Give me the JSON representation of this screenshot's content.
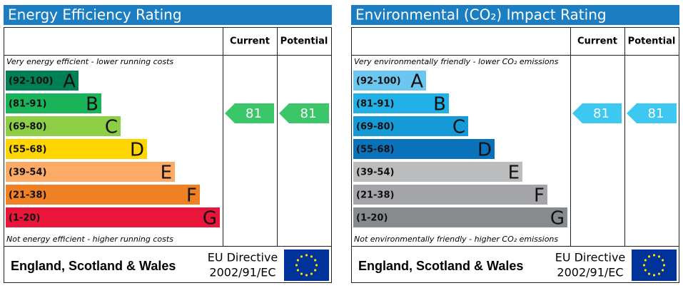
{
  "panels": [
    {
      "title": "Energy Efficiency Rating",
      "headers": [
        "Current",
        "Potential"
      ],
      "top_note": "Very energy efficient - lower running costs",
      "bottom_note": "Not energy efficient - higher running costs",
      "bands": [
        {
          "range": "(92-100)",
          "letter": "A",
          "color": "#008054"
        },
        {
          "range": "(81-91)",
          "letter": "B",
          "color": "#19b459"
        },
        {
          "range": "(69-80)",
          "letter": "C",
          "color": "#8dce46"
        },
        {
          "range": "(55-68)",
          "letter": "D",
          "color": "#ffd500"
        },
        {
          "range": "(39-54)",
          "letter": "E",
          "color": "#fcaa65"
        },
        {
          "range": "(21-38)",
          "letter": "F",
          "color": "#ef8023"
        },
        {
          "range": "(1-20)",
          "letter": "G",
          "color": "#e9153b"
        }
      ],
      "current": 81,
      "potential": 81,
      "arrow_color": "#3cc66a",
      "footer": {
        "region": "England, Scotland & Wales",
        "directive": [
          "EU Directive",
          "2002/91/EC"
        ]
      }
    },
    {
      "title": "Environmental (CO₂) Impact Rating",
      "headers": [
        "Current",
        "Potential"
      ],
      "top_note": "Very environmentally friendly - lower CO₂ emissions",
      "bottom_note": "Not environmentally friendly - higher CO₂ emissions",
      "bands": [
        {
          "range": "(92-100)",
          "letter": "A",
          "color": "#6cc7f0"
        },
        {
          "range": "(81-91)",
          "letter": "B",
          "color": "#22b1e6"
        },
        {
          "range": "(69-80)",
          "letter": "C",
          "color": "#159ad8"
        },
        {
          "range": "(55-68)",
          "letter": "D",
          "color": "#0a72bb"
        },
        {
          "range": "(39-54)",
          "letter": "E",
          "color": "#bbbcbe"
        },
        {
          "range": "(21-38)",
          "letter": "F",
          "color": "#a3a5a8"
        },
        {
          "range": "(1-20)",
          "letter": "G",
          "color": "#888b8e"
        }
      ],
      "current": 81,
      "potential": 81,
      "arrow_color": "#3cc8f0",
      "footer": {
        "region": "England, Scotland & Wales",
        "directive": [
          "EU Directive",
          "2002/91/EC"
        ]
      }
    }
  ]
}
